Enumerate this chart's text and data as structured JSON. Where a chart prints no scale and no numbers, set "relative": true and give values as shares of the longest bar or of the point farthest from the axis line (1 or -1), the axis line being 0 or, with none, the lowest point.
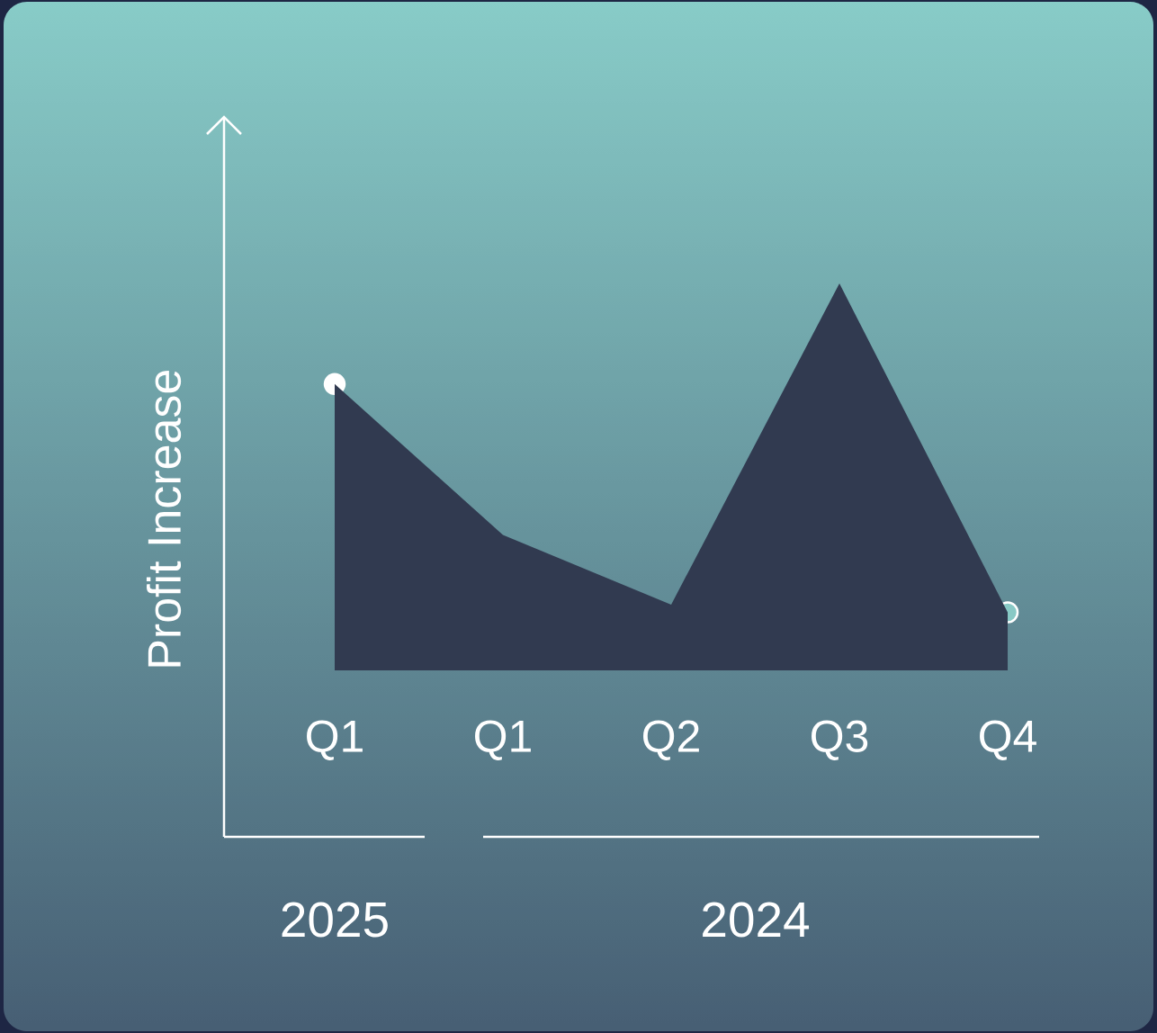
{
  "chart_data": {
    "type": "area",
    "relative": true,
    "ylabel": "Profit Increase",
    "categories": [
      "Q1",
      "Q1",
      "Q2",
      "Q3",
      "Q4"
    ],
    "values": [
      0.74,
      0.35,
      0.17,
      1,
      0.15
    ],
    "color": "#313a50",
    "annotations": [
      "2025",
      "2024"
    ]
  }
}
